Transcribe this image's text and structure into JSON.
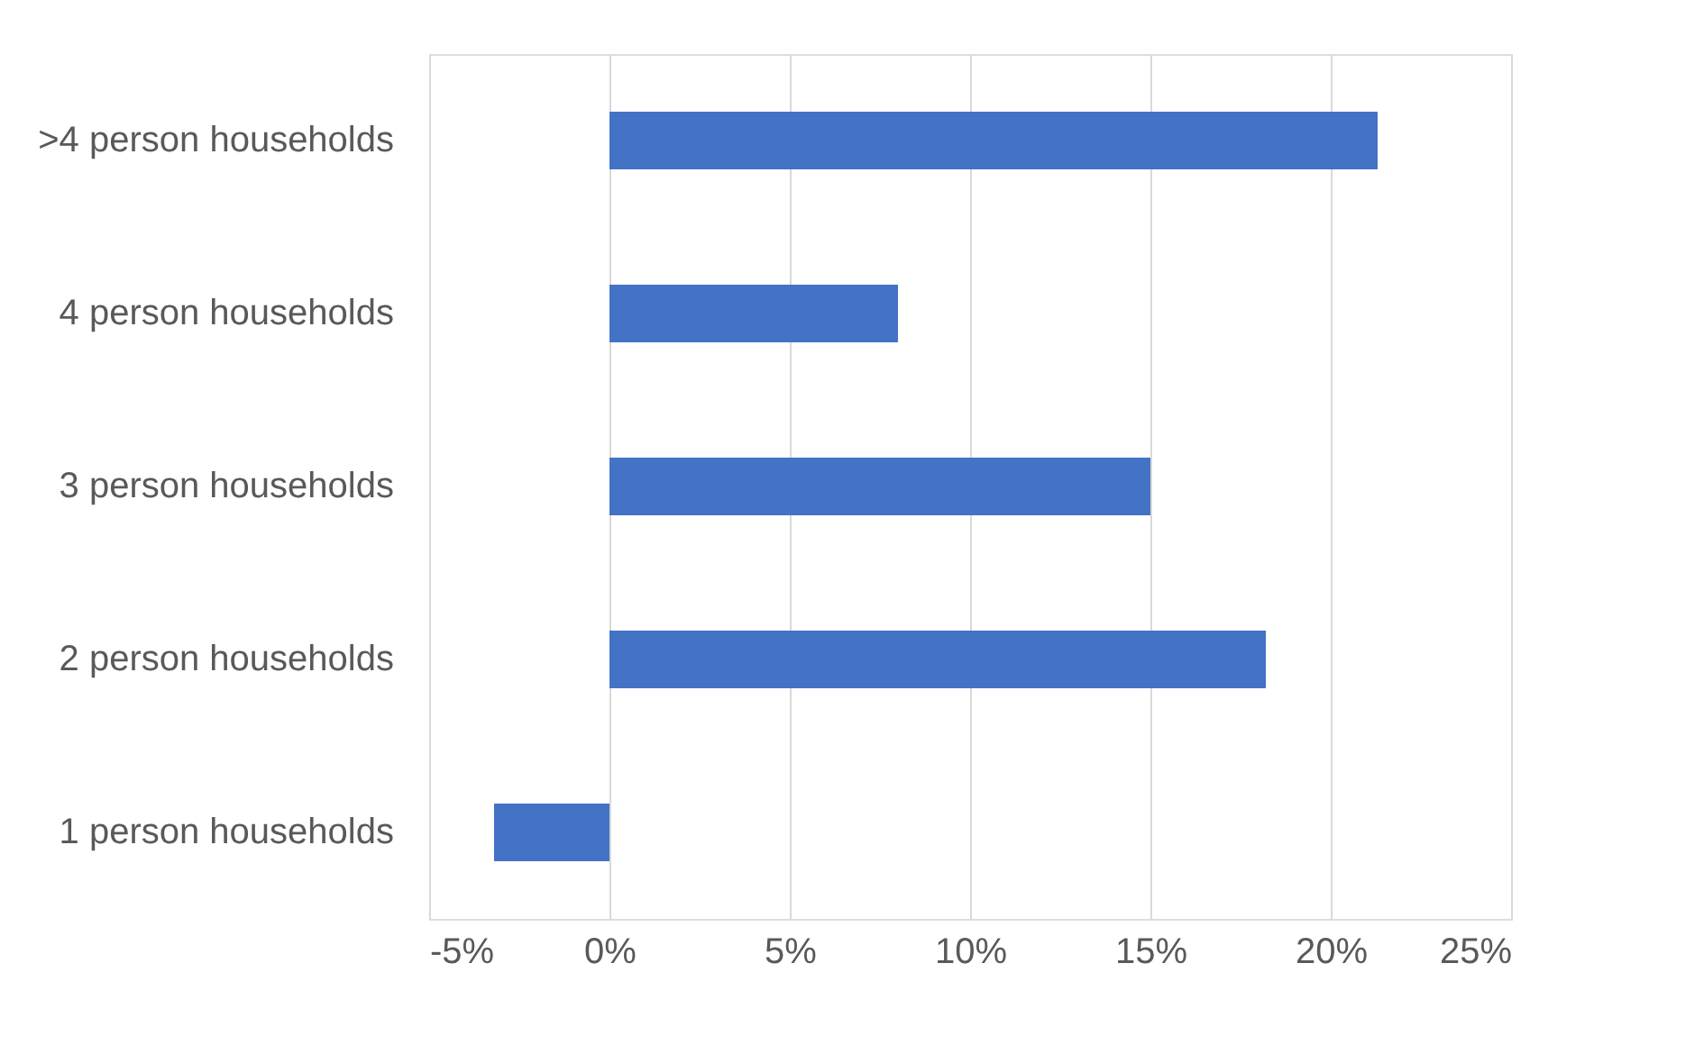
{
  "chart_data": {
    "type": "bar",
    "orientation": "horizontal",
    "categories": [
      ">4 person households",
      "4 person households",
      "3 person households",
      "2 person households",
      "1 person households"
    ],
    "values": [
      21.3,
      8.0,
      15.0,
      18.2,
      -3.2
    ],
    "color": "#4472c4",
    "xlim": [
      -5,
      25
    ],
    "xticks": [
      {
        "value": -5,
        "label": "-5%"
      },
      {
        "value": 0,
        "label": "0%"
      },
      {
        "value": 5,
        "label": "5%"
      },
      {
        "value": 10,
        "label": "10%"
      },
      {
        "value": 15,
        "label": "15%"
      },
      {
        "value": 20,
        "label": "20%"
      },
      {
        "value": 25,
        "label": "25%"
      }
    ],
    "grid": "x"
  }
}
